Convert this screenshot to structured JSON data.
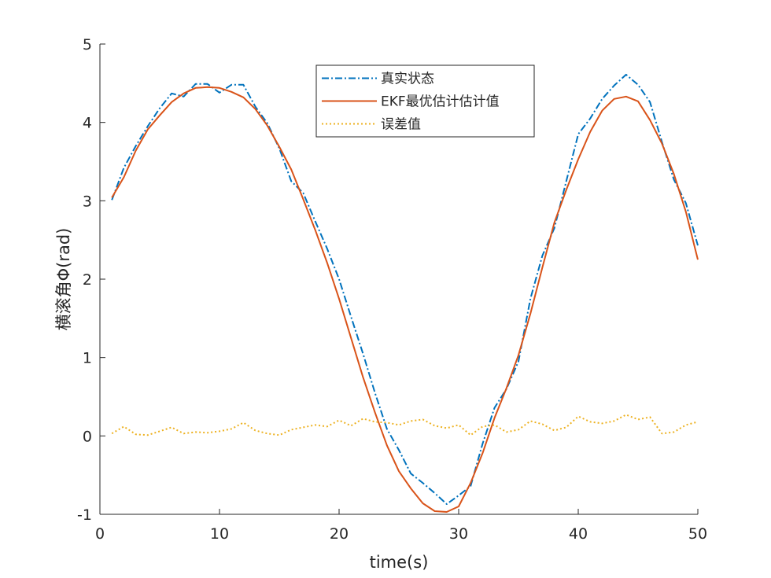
{
  "chart_data": {
    "type": "line",
    "title": "",
    "xlabel": "time(s)",
    "ylabel": "横滚角Φ(rad)",
    "xlim": [
      0,
      50
    ],
    "ylim": [
      -1,
      5
    ],
    "xticks": [
      "0",
      "10",
      "20",
      "30",
      "40",
      "50"
    ],
    "yticks": [
      "-1",
      "0",
      "1",
      "2",
      "3",
      "4",
      "5"
    ],
    "grid": false,
    "legend_position": "top-center",
    "x": [
      1,
      2,
      3,
      4,
      5,
      6,
      7,
      8,
      9,
      10,
      11,
      12,
      13,
      14,
      15,
      16,
      17,
      18,
      19,
      20,
      21,
      22,
      23,
      24,
      25,
      26,
      27,
      28,
      29,
      30,
      31,
      32,
      33,
      34,
      35,
      36,
      37,
      38,
      39,
      40,
      41,
      42,
      43,
      44,
      45,
      46,
      47,
      48,
      49,
      50
    ],
    "series": [
      {
        "name": "真实状态",
        "style": "dash-dot",
        "color": "#0072BD",
        "values": [
          3.01,
          3.42,
          3.7,
          3.95,
          4.18,
          4.37,
          4.33,
          4.49,
          4.49,
          4.38,
          4.48,
          4.48,
          4.2,
          3.99,
          3.67,
          3.25,
          3.1,
          2.74,
          2.39,
          2.0,
          1.52,
          1.05,
          0.55,
          0.09,
          -0.18,
          -0.48,
          -0.6,
          -0.73,
          -0.87,
          -0.76,
          -0.64,
          -0.1,
          0.36,
          0.6,
          0.95,
          1.75,
          2.3,
          2.65,
          3.25,
          3.85,
          4.05,
          4.3,
          4.47,
          4.61,
          4.48,
          4.26,
          3.75,
          3.27,
          2.97,
          2.43
        ]
      },
      {
        "name": "EKF最优估计估计值",
        "style": "solid",
        "color": "#D95319",
        "values": [
          3.04,
          3.3,
          3.64,
          3.91,
          4.09,
          4.26,
          4.37,
          4.44,
          4.45,
          4.44,
          4.39,
          4.32,
          4.17,
          3.96,
          3.69,
          3.4,
          3.02,
          2.63,
          2.21,
          1.75,
          1.25,
          0.75,
          0.3,
          -0.12,
          -0.45,
          -0.67,
          -0.86,
          -0.96,
          -0.97,
          -0.9,
          -0.6,
          -0.22,
          0.23,
          0.61,
          1.03,
          1.56,
          2.15,
          2.72,
          3.14,
          3.53,
          3.88,
          4.15,
          4.3,
          4.33,
          4.27,
          4.03,
          3.73,
          3.34,
          2.86,
          2.25
        ]
      },
      {
        "name": "误差值",
        "style": "dotted",
        "color": "#EDB120",
        "values": [
          0.03,
          0.12,
          0.02,
          0.01,
          0.06,
          0.11,
          0.03,
          0.05,
          0.04,
          0.06,
          0.09,
          0.17,
          0.07,
          0.03,
          0.01,
          0.08,
          0.11,
          0.14,
          0.12,
          0.2,
          0.13,
          0.22,
          0.18,
          0.17,
          0.14,
          0.19,
          0.21,
          0.13,
          0.1,
          0.14,
          0.01,
          0.12,
          0.14,
          0.05,
          0.08,
          0.19,
          0.15,
          0.07,
          0.11,
          0.25,
          0.18,
          0.16,
          0.19,
          0.27,
          0.21,
          0.24,
          0.03,
          0.05,
          0.14,
          0.18
        ]
      }
    ]
  }
}
